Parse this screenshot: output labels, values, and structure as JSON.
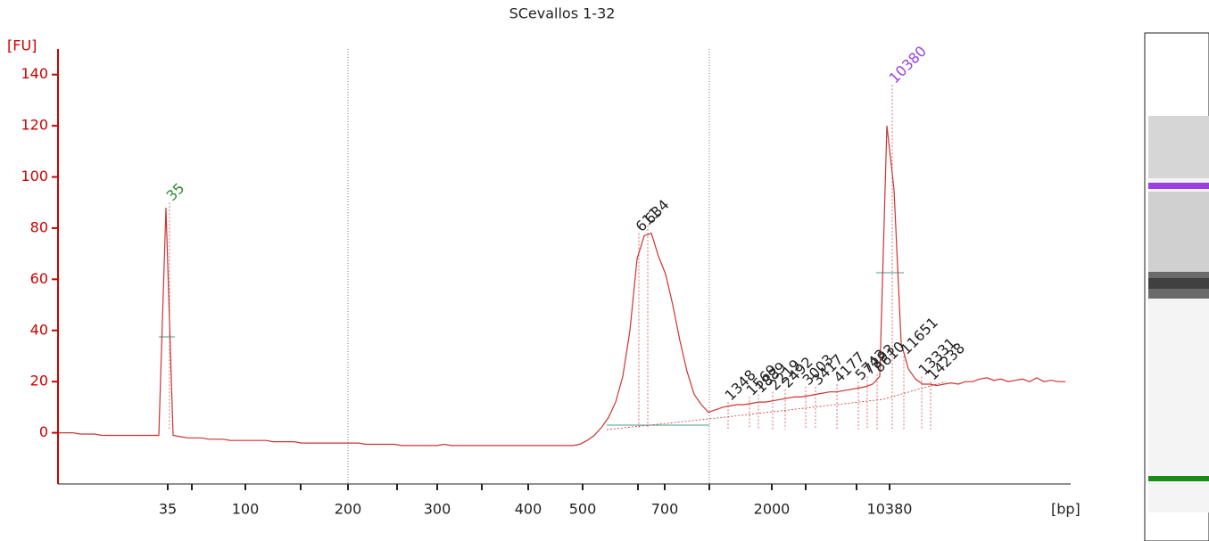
{
  "chart_data": {
    "type": "line",
    "title": "SCevallos 1-32",
    "y_label": "[FU]",
    "x_label": "[bp]",
    "color": "#cc3333",
    "ylim": [
      -20,
      150
    ],
    "yticks": [
      0,
      20,
      40,
      60,
      80,
      100,
      120,
      140
    ],
    "xticks": [
      35,
      null,
      100,
      null,
      200,
      null,
      300,
      null,
      400,
      500,
      null,
      700,
      null,
      2000,
      null,
      null,
      10380
    ],
    "values": [
      0,
      0,
      0,
      -0.5,
      -0.5,
      -0.5,
      -1,
      -1,
      -1,
      -1,
      -1,
      -1,
      -1,
      -1,
      -1,
      88,
      -1,
      -1.5,
      -2,
      -2,
      -2,
      -2.5,
      -2.5,
      -2.5,
      -3,
      -3,
      -3,
      -3,
      -3,
      -3,
      -3.5,
      -3.5,
      -3.5,
      -3.5,
      -4,
      -4,
      -4,
      -4,
      -4,
      -4,
      -4,
      -4,
      -4,
      -4.5,
      -4.5,
      -4.5,
      -4.5,
      -4.5,
      -5,
      -5,
      -5,
      -5,
      -5,
      -5,
      -4.5,
      -5,
      -5,
      -5,
      -5,
      -5,
      -5,
      -5,
      -5,
      -5,
      -5,
      -5,
      -5,
      -5,
      -5,
      -5,
      -5,
      -5,
      -5,
      -4.5,
      -3,
      -1,
      2,
      6,
      12,
      22,
      40,
      68,
      77,
      78,
      69,
      62,
      50,
      36,
      24,
      15,
      11,
      8,
      9,
      10,
      10.5,
      11,
      11,
      11.5,
      12,
      12,
      12.5,
      13,
      13.5,
      14,
      14,
      14.5,
      15,
      15.5,
      16,
      16,
      16.5,
      17,
      17.5,
      18,
      19,
      22,
      120,
      95,
      35,
      25,
      21,
      19,
      19,
      18.5,
      19,
      19.5,
      19,
      20,
      20,
      21,
      21.5,
      20.5,
      21,
      20,
      20.5,
      21,
      20,
      21.5,
      20,
      20.5,
      20,
      20
    ],
    "peaks": [
      {
        "label": "35",
        "value": 90,
        "color": "#2e8b2e"
      },
      {
        "label": "611",
        "value": 78,
        "color": "#222222"
      },
      {
        "label": "634",
        "value": 81,
        "color": "#222222"
      },
      {
        "label": "10380",
        "value": 136,
        "color": "#9b40e0"
      },
      {
        "label": "1348",
        "value": 12,
        "color": "#222222"
      },
      {
        "label": "1569",
        "value": 14,
        "color": "#222222"
      },
      {
        "label": "1889",
        "value": 15,
        "color": "#222222"
      },
      {
        "label": "2219",
        "value": 16,
        "color": "#222222"
      },
      {
        "label": "2492",
        "value": 17,
        "color": "#222222"
      },
      {
        "label": "3003",
        "value": 18,
        "color": "#222222"
      },
      {
        "label": "3417",
        "value": 18,
        "color": "#222222"
      },
      {
        "label": "4177",
        "value": 19,
        "color": "#222222"
      },
      {
        "label": "5743",
        "value": 20,
        "color": "#222222"
      },
      {
        "label": "7293",
        "value": 22,
        "color": "#222222"
      },
      {
        "label": "8610",
        "value": 23,
        "color": "#222222"
      },
      {
        "label": "11651",
        "value": 30,
        "color": "#222222"
      },
      {
        "label": "13331",
        "value": 22,
        "color": "#222222"
      },
      {
        "label": "14238",
        "value": 20,
        "color": "#222222"
      }
    ]
  }
}
